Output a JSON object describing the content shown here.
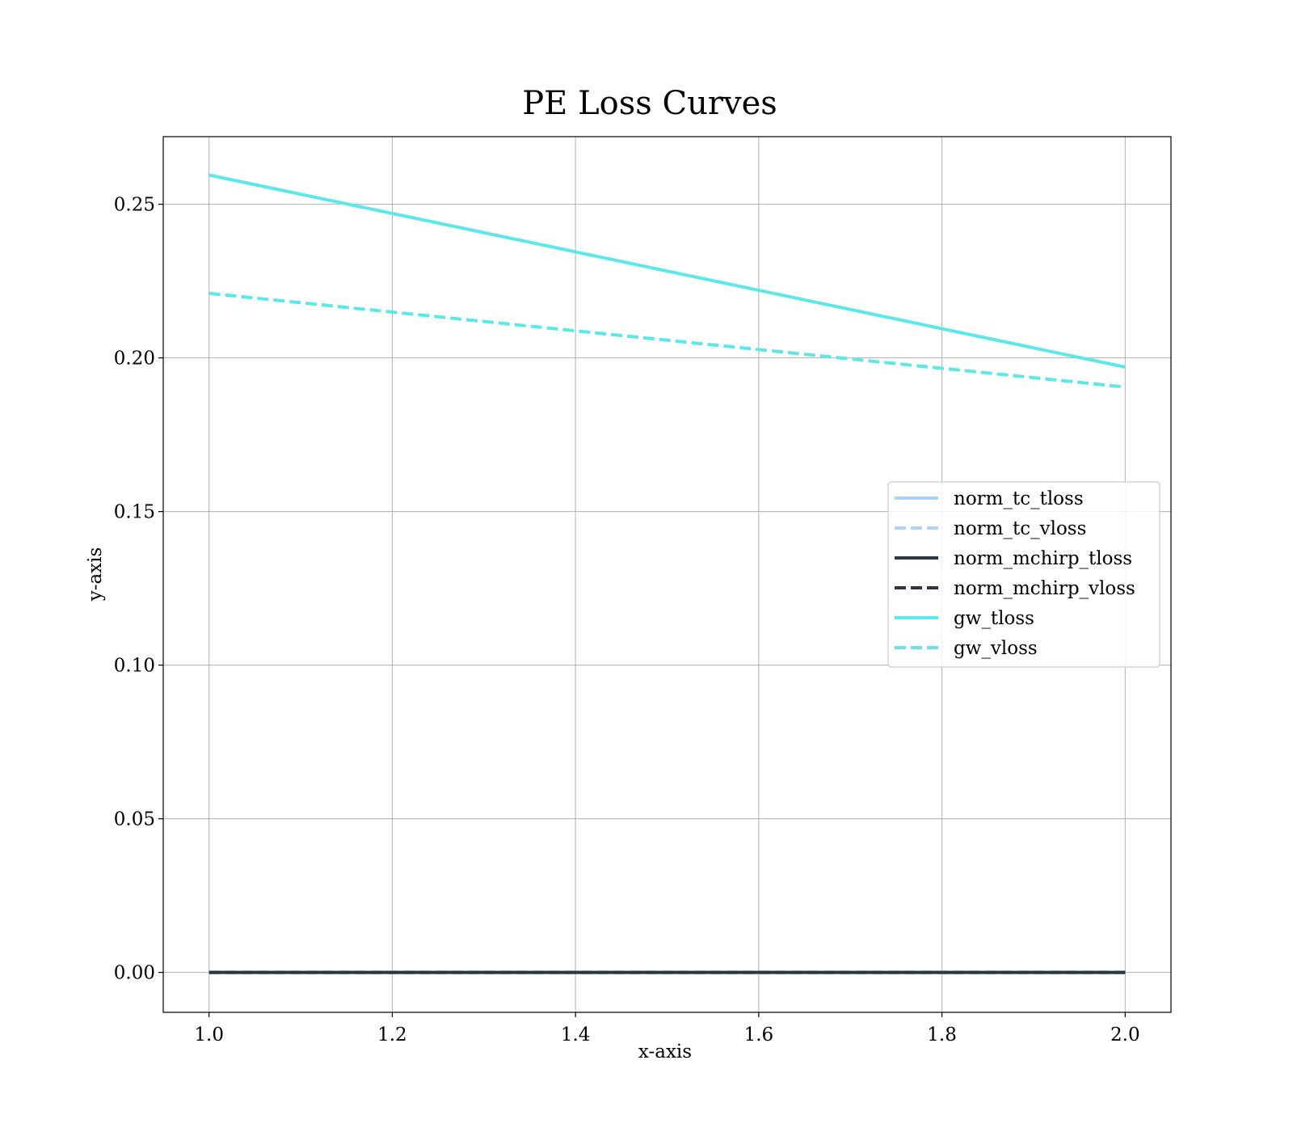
{
  "chart_data": {
    "type": "line",
    "title": "PE Loss Curves",
    "xlabel": "x-axis",
    "ylabel": "y-axis",
    "x": [
      1.0,
      2.0
    ],
    "xlim": [
      0.95,
      2.05
    ],
    "ylim": [
      -0.013,
      0.272
    ],
    "xticks": [
      1.0,
      1.2,
      1.4,
      1.6,
      1.8,
      2.0
    ],
    "xtick_labels": [
      "1.0",
      "1.2",
      "1.4",
      "1.6",
      "1.8",
      "2.0"
    ],
    "yticks": [
      0.0,
      0.05,
      0.1,
      0.15,
      0.2,
      0.25
    ],
    "ytick_labels": [
      "0.00",
      "0.05",
      "0.10",
      "0.15",
      "0.20",
      "0.25"
    ],
    "grid": true,
    "legend_position": "center-right",
    "series": [
      {
        "name": "norm_tc_tloss",
        "values": [
          0.0,
          0.0
        ],
        "color": "#aad4f5",
        "dashed": false
      },
      {
        "name": "norm_tc_vloss",
        "values": [
          0.0,
          0.0
        ],
        "color": "#aad4f5",
        "dashed": true
      },
      {
        "name": "norm_mchirp_tloss",
        "values": [
          0.0,
          0.0
        ],
        "color": "#2d3741",
        "dashed": false
      },
      {
        "name": "norm_mchirp_vloss",
        "values": [
          0.0,
          0.0
        ],
        "color": "#2d3741",
        "dashed": true
      },
      {
        "name": "gw_tloss",
        "values": [
          0.2595,
          0.197
        ],
        "color": "#5ce8e8",
        "dashed": false
      },
      {
        "name": "gw_vloss",
        "values": [
          0.221,
          0.1905
        ],
        "color": "#5ce8e8",
        "dashed": true
      }
    ]
  }
}
